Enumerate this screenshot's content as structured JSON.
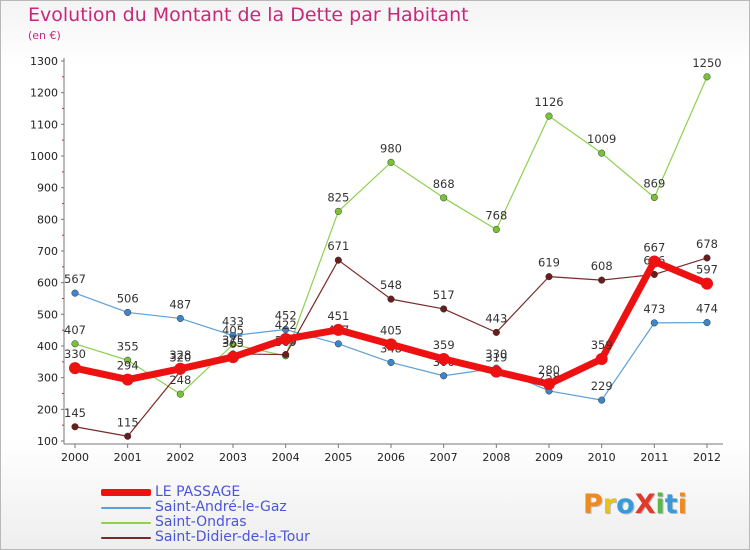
{
  "title": "Evolution du Montant de la Dette par Habitant",
  "unit": "(en €)",
  "brand": {
    "text": "ProXiti",
    "letters": [
      {
        "ch": "P",
        "color": "#f08a1e"
      },
      {
        "ch": "r",
        "color": "#e8c21a"
      },
      {
        "ch": "o",
        "color": "#3a9ad9"
      },
      {
        "ch": "X",
        "color": "#e03a2a"
      },
      {
        "ch": "i",
        "color": "#58b848"
      },
      {
        "ch": "t",
        "color": "#3a9ad9"
      },
      {
        "ch": "i",
        "color": "#f08a1e"
      }
    ]
  },
  "chart_data": {
    "type": "line",
    "x": [
      "2000",
      "2001",
      "2002",
      "2003",
      "2004",
      "2005",
      "2006",
      "2007",
      "2008",
      "2009",
      "2010",
      "2011",
      "2012"
    ],
    "ylim": [
      100,
      1300
    ],
    "yticks": [
      "100",
      "200",
      "300",
      "400",
      "500",
      "600",
      "700",
      "800",
      "900",
      "1000",
      "1100",
      "1200",
      "1300"
    ],
    "grid": false,
    "legend_position": "bottom-left",
    "series": [
      {
        "name": "Saint-Ondras",
        "color": "#8ed04f",
        "marker": "#79c236",
        "width": 1.2,
        "values": [
          407,
          355,
          248,
          405,
          369,
          825,
          980,
          868,
          768,
          1126,
          1009,
          869,
          1250
        ],
        "labels": [
          "407",
          "355",
          "248",
          "405",
          "369",
          "825",
          "980",
          "868",
          "768",
          "1126",
          "1009",
          "869",
          "1250"
        ]
      },
      {
        "name": "Saint-André-le-Gaz",
        "color": "#5d9fd6",
        "marker": "#3c86cc",
        "width": 1.2,
        "values": [
          567,
          506,
          487,
          433,
          452,
          407,
          348,
          306,
          330,
          258,
          229,
          473,
          474
        ],
        "labels": [
          "567",
          "506",
          "487",
          "433",
          "452",
          "407",
          "348",
          "306",
          "330",
          "258",
          "229",
          "473",
          "474"
        ]
      },
      {
        "name": "Saint-Didier-de-la-Tour",
        "color": "#7a2a2a",
        "marker": "#6a1d1d",
        "width": 1.2,
        "values": [
          145,
          115,
          320,
          375,
          373,
          671,
          548,
          517,
          443,
          619,
          608,
          626,
          678
        ],
        "labels": [
          "145",
          "115",
          "320",
          "375",
          "373",
          "671",
          "548",
          "517",
          "443",
          "619",
          "608",
          "626",
          "678"
        ]
      },
      {
        "name": "LE PASSAGE",
        "color": "#ee1111",
        "marker": "#ee1111",
        "width": 7,
        "values": [
          330,
          294,
          328,
          365,
          422,
          451,
          405,
          359,
          319,
          280,
          359,
          667,
          597
        ],
        "labels": [
          "330",
          "294",
          "328",
          "365",
          "422",
          "451",
          "405",
          "359",
          "319",
          "280",
          "359",
          "667",
          "597"
        ]
      }
    ]
  },
  "legend": [
    {
      "name": "LE PASSAGE",
      "color": "#ee1111",
      "height": 7
    },
    {
      "name": "Saint-André-le-Gaz",
      "color": "#5d9fd6",
      "height": 2
    },
    {
      "name": "Saint-Ondras",
      "color": "#8ed04f",
      "height": 2
    },
    {
      "name": "Saint-Didier-de-la-Tour",
      "color": "#7a2a2a",
      "height": 2
    }
  ]
}
